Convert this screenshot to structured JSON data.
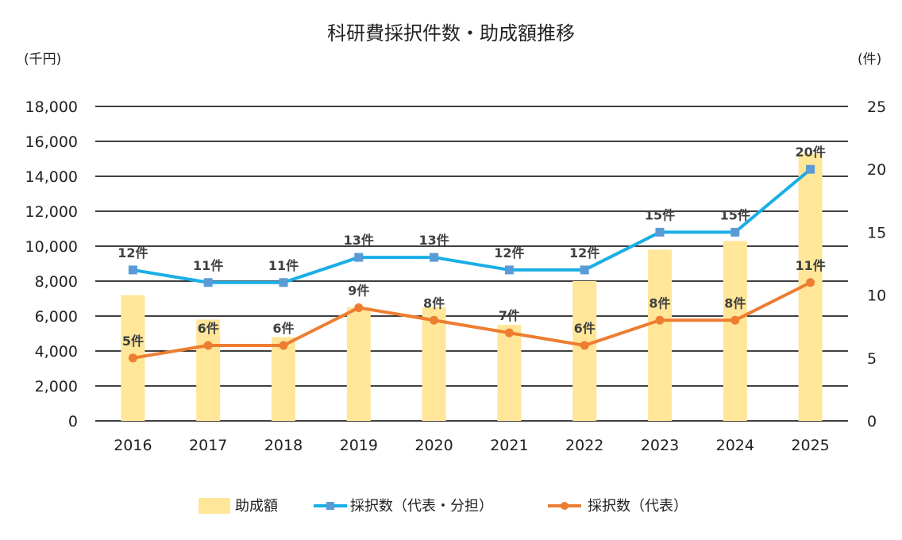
{
  "chart_data": {
    "type": "bar+line",
    "title": "科研費採択件数・助成額推移",
    "y_left_unit": "(千円)",
    "y_right_unit": "(件)",
    "y_left_ticks": [
      "0",
      "2,000",
      "4,000",
      "6,000",
      "8,000",
      "10,000",
      "12,000",
      "14,000",
      "16,000",
      "18,000"
    ],
    "y_right_ticks": [
      "0",
      "5",
      "10",
      "15",
      "20",
      "25"
    ],
    "ylim_left": [
      0,
      18000
    ],
    "ylim_right": [
      0,
      25
    ],
    "categories": [
      "2016",
      "2017",
      "2018",
      "2019",
      "2020",
      "2021",
      "2022",
      "2023",
      "2024",
      "2025"
    ],
    "series": [
      {
        "name": "助成額",
        "kind": "bar",
        "axis": "left",
        "color": "#FFE699",
        "values": [
          7200,
          5800,
          4800,
          6500,
          6500,
          5500,
          8000,
          9800,
          10300,
          15300
        ]
      },
      {
        "name": "採択数（代表・分担）",
        "kind": "line",
        "axis": "right",
        "color": "#1AAEE6",
        "marker_color": "#5B9BD5",
        "values": [
          12,
          11,
          11,
          13,
          13,
          12,
          12,
          15,
          15,
          20
        ],
        "labels": [
          "12件",
          "11件",
          "11件",
          "13件",
          "13件",
          "12件",
          "12件",
          "15件",
          "15件",
          "20件"
        ]
      },
      {
        "name": "採択数（代表）",
        "kind": "line",
        "axis": "right",
        "color": "#ED7D31",
        "values": [
          5,
          6,
          6,
          9,
          8,
          7,
          6,
          8,
          8,
          11
        ],
        "labels": [
          "5件",
          "6件",
          "6件",
          "9件",
          "8件",
          "7件",
          "6件",
          "8件",
          "8件",
          "11件"
        ]
      }
    ],
    "legend_position": "bottom"
  }
}
